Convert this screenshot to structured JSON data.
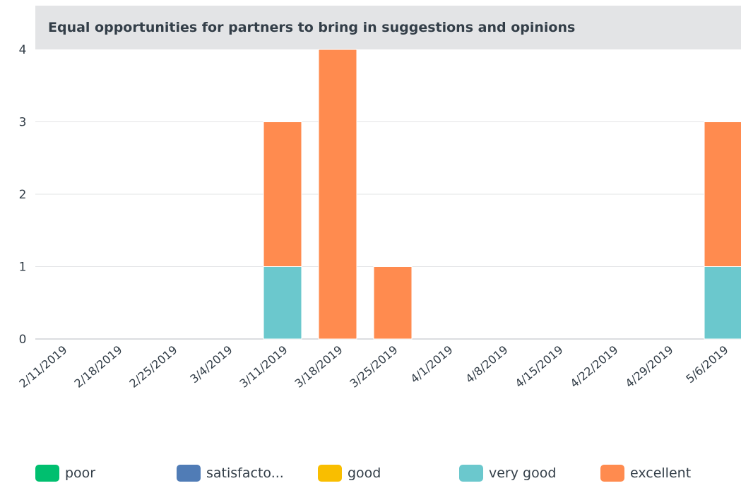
{
  "chart_data": {
    "type": "bar",
    "stacked": true,
    "title": "Equal opportunities for partners to bring in suggestions and opinions",
    "xlabel": "",
    "ylabel": "",
    "ylim": [
      0,
      4
    ],
    "y_ticks": [
      "0",
      "1",
      "2",
      "3",
      "4"
    ],
    "grid": true,
    "legend_position": "bottom",
    "categories": [
      "2/11/2019",
      "2/18/2019",
      "2/25/2019",
      "3/4/2019",
      "3/11/2019",
      "3/18/2019",
      "3/25/2019",
      "4/1/2019",
      "4/8/2019",
      "4/15/2019",
      "4/22/2019",
      "4/29/2019",
      "5/6/2019"
    ],
    "series": [
      {
        "name": "poor",
        "color": "#00bf6f",
        "values": [
          0,
          0,
          0,
          0,
          0,
          0,
          0,
          0,
          0,
          0,
          0,
          0,
          0
        ]
      },
      {
        "name": "satisfacto...",
        "color": "#507cb6",
        "values": [
          0,
          0,
          0,
          0,
          0,
          0,
          0,
          0,
          0,
          0,
          0,
          0,
          0
        ]
      },
      {
        "name": "good",
        "color": "#f9be00",
        "values": [
          0,
          0,
          0,
          0,
          0,
          0,
          0,
          0,
          0,
          0,
          0,
          0,
          0
        ]
      },
      {
        "name": "very good",
        "color": "#6bc8cd",
        "values": [
          0,
          0,
          0,
          0,
          1,
          0,
          0,
          0,
          0,
          0,
          0,
          0,
          1
        ]
      },
      {
        "name": "excellent",
        "color": "#ff8b4f",
        "values": [
          0,
          0,
          0,
          0,
          2,
          4,
          1,
          0,
          0,
          0,
          0,
          0,
          2
        ]
      }
    ]
  },
  "colors": {
    "title_band": "#e3e4e6",
    "gridline": "#e3e4e6",
    "axis_line": "#cfd2d6",
    "text": "#333e48"
  }
}
